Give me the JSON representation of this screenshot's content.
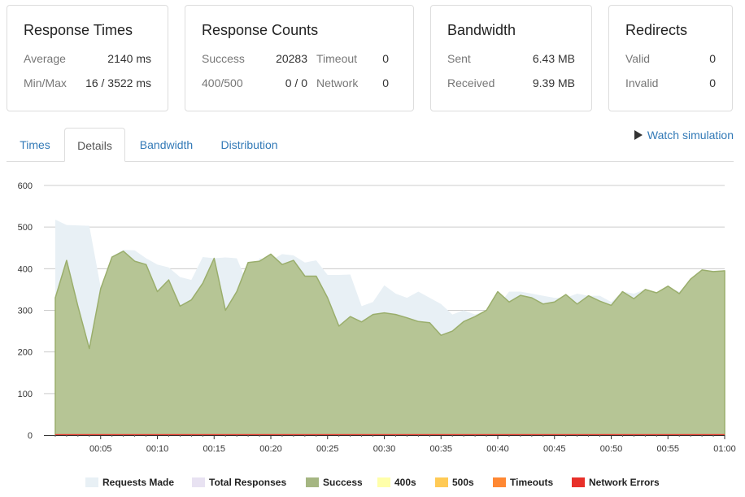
{
  "cards": {
    "response_times": {
      "title": "Response Times",
      "rows": [
        {
          "label": "Average",
          "value": "2140 ms"
        },
        {
          "label": "Min/Max",
          "value": "16 / 3522 ms"
        }
      ]
    },
    "response_counts": {
      "title": "Response Counts",
      "rows": [
        {
          "label": "Success",
          "value": "20283",
          "label2": "Timeout",
          "value2": "0"
        },
        {
          "label": "400/500",
          "value": "0 / 0",
          "label2": "Network",
          "value2": "0"
        }
      ]
    },
    "bandwidth": {
      "title": "Bandwidth",
      "rows": [
        {
          "label": "Sent",
          "value": "6.43 MB"
        },
        {
          "label": "Received",
          "value": "9.39 MB"
        }
      ]
    },
    "redirects": {
      "title": "Redirects",
      "rows": [
        {
          "label": "Valid",
          "value": "0"
        },
        {
          "label": "Invalid",
          "value": "0"
        }
      ]
    }
  },
  "tabs": [
    {
      "label": "Times",
      "active": false
    },
    {
      "label": "Details",
      "active": true
    },
    {
      "label": "Bandwidth",
      "active": false
    },
    {
      "label": "Distribution",
      "active": false
    }
  ],
  "watch_simulation": "Watch simulation",
  "chart_data": {
    "type": "area",
    "ylim": [
      0,
      600
    ],
    "yticks": [
      0,
      100,
      200,
      300,
      400,
      500,
      600
    ],
    "xticks": [
      "00:05",
      "00:10",
      "00:15",
      "00:20",
      "00:25",
      "00:30",
      "00:35",
      "00:40",
      "00:45",
      "00:50",
      "00:55",
      "01:00"
    ],
    "grid": true,
    "legend_position": "bottom",
    "x_seconds": [
      1,
      2,
      3,
      4,
      5,
      6,
      7,
      8,
      9,
      10,
      11,
      12,
      13,
      14,
      15,
      16,
      17,
      18,
      19,
      20,
      21,
      22,
      23,
      24,
      25,
      26,
      27,
      28,
      29,
      30,
      31,
      32,
      33,
      34,
      35,
      36,
      37,
      38,
      39,
      40,
      41,
      42,
      43,
      44,
      45,
      46,
      47,
      48,
      49,
      50,
      51,
      52,
      53,
      54,
      55,
      56,
      57,
      58,
      59,
      60
    ],
    "series": [
      {
        "name": "Requests Made",
        "color": "#e8f0f5",
        "values": [
          518,
          505,
          504,
          503,
          355,
          430,
          445,
          444,
          425,
          410,
          403,
          380,
          373,
          428,
          425,
          427,
          425,
          360,
          425,
          420,
          435,
          432,
          415,
          420,
          385,
          385,
          386,
          310,
          320,
          360,
          340,
          330,
          345,
          330,
          315,
          290,
          300,
          290,
          300,
          310,
          345,
          345,
          340,
          335,
          330,
          330,
          340,
          335,
          335,
          320,
          345,
          340,
          350,
          340,
          355,
          345,
          370,
          395,
          395,
          395
        ]
      },
      {
        "name": "Total Responses",
        "color": "#e8e2f2",
        "values": []
      },
      {
        "name": "Success",
        "color": "#a5b682",
        "values": [
          330,
          420,
          310,
          208,
          352,
          428,
          442,
          418,
          410,
          345,
          373,
          310,
          325,
          365,
          425,
          300,
          345,
          415,
          418,
          435,
          410,
          420,
          382,
          382,
          330,
          262,
          285,
          272,
          290,
          294,
          290,
          282,
          273,
          270,
          240,
          250,
          273,
          285,
          300,
          345,
          320,
          336,
          330,
          315,
          320,
          338,
          315,
          335,
          322,
          312,
          345,
          328,
          350,
          342,
          358,
          340,
          375,
          397,
          393,
          395
        ]
      },
      {
        "name": "400s",
        "color": "#ffffaa",
        "values": []
      },
      {
        "name": "500s",
        "color": "#ffca55",
        "values": []
      },
      {
        "name": "Timeouts",
        "color": "#ff8833",
        "values": []
      },
      {
        "name": "Network Errors",
        "color": "#e8302a",
        "values": []
      }
    ]
  }
}
